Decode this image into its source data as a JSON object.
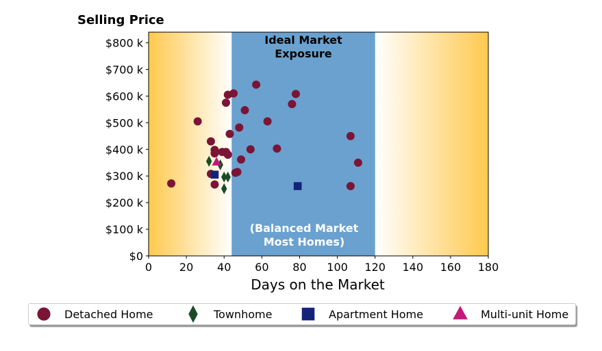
{
  "chart_data": {
    "type": "scatter",
    "title": "Selling Price",
    "xlabel": "Days on the Market",
    "ylabel": "",
    "xlim": [
      0,
      180
    ],
    "ylim": [
      0,
      840000
    ],
    "x_ticks": [
      0,
      20,
      40,
      60,
      80,
      100,
      120,
      140,
      160,
      180
    ],
    "y_ticks": [
      0,
      100000,
      200000,
      300000,
      400000,
      500000,
      600000,
      700000,
      800000
    ],
    "y_tick_labels": [
      "$0",
      "$100 k",
      "$200 k",
      "$300 k",
      "$400 k",
      "$500 k",
      "$600 k",
      "$700 k",
      "$800 k"
    ],
    "grid": false,
    "legend_position": "bottom",
    "background_band": {
      "x_range": [
        44,
        120
      ],
      "color": "#6aa1cf",
      "label_top": [
        "Ideal Market",
        "Exposure"
      ],
      "label_bottom": [
        "(Balanced Market",
        "Most Homes)"
      ]
    },
    "gradient_color": "#ffc94d",
    "series": [
      {
        "name": "Detached Home",
        "marker": "circle",
        "color": "#7b1535",
        "points": [
          [
            12,
            272000
          ],
          [
            26,
            505000
          ],
          [
            33,
            430000
          ],
          [
            33,
            308000
          ],
          [
            35,
            398000
          ],
          [
            35,
            385000
          ],
          [
            35,
            268000
          ],
          [
            39,
            390000
          ],
          [
            41,
            575000
          ],
          [
            42,
            605000
          ],
          [
            41,
            390000
          ],
          [
            42,
            380000
          ],
          [
            43,
            458000
          ],
          [
            45,
            610000
          ],
          [
            46,
            312000
          ],
          [
            47,
            315000
          ],
          [
            48,
            482000
          ],
          [
            49,
            362000
          ],
          [
            51,
            547000
          ],
          [
            54,
            400000
          ],
          [
            57,
            643000
          ],
          [
            63,
            505000
          ],
          [
            68,
            403000
          ],
          [
            76,
            570000
          ],
          [
            78,
            608000
          ],
          [
            107,
            450000
          ],
          [
            107,
            262000
          ],
          [
            111,
            350000
          ]
        ]
      },
      {
        "name": "Townhome",
        "marker": "diamond",
        "color": "#1b4b26",
        "points": [
          [
            32,
            355000
          ],
          [
            38,
            342000
          ],
          [
            40,
            296000
          ],
          [
            42,
            296000
          ],
          [
            40,
            252000
          ]
        ]
      },
      {
        "name": "Apartment Home",
        "marker": "square",
        "color": "#14237a",
        "points": [
          [
            35,
            305000
          ],
          [
            79,
            262000
          ]
        ]
      },
      {
        "name": "Multi-unit Home",
        "marker": "triangle",
        "color": "#c4167b",
        "points": [
          [
            36,
            352000
          ]
        ]
      }
    ]
  }
}
